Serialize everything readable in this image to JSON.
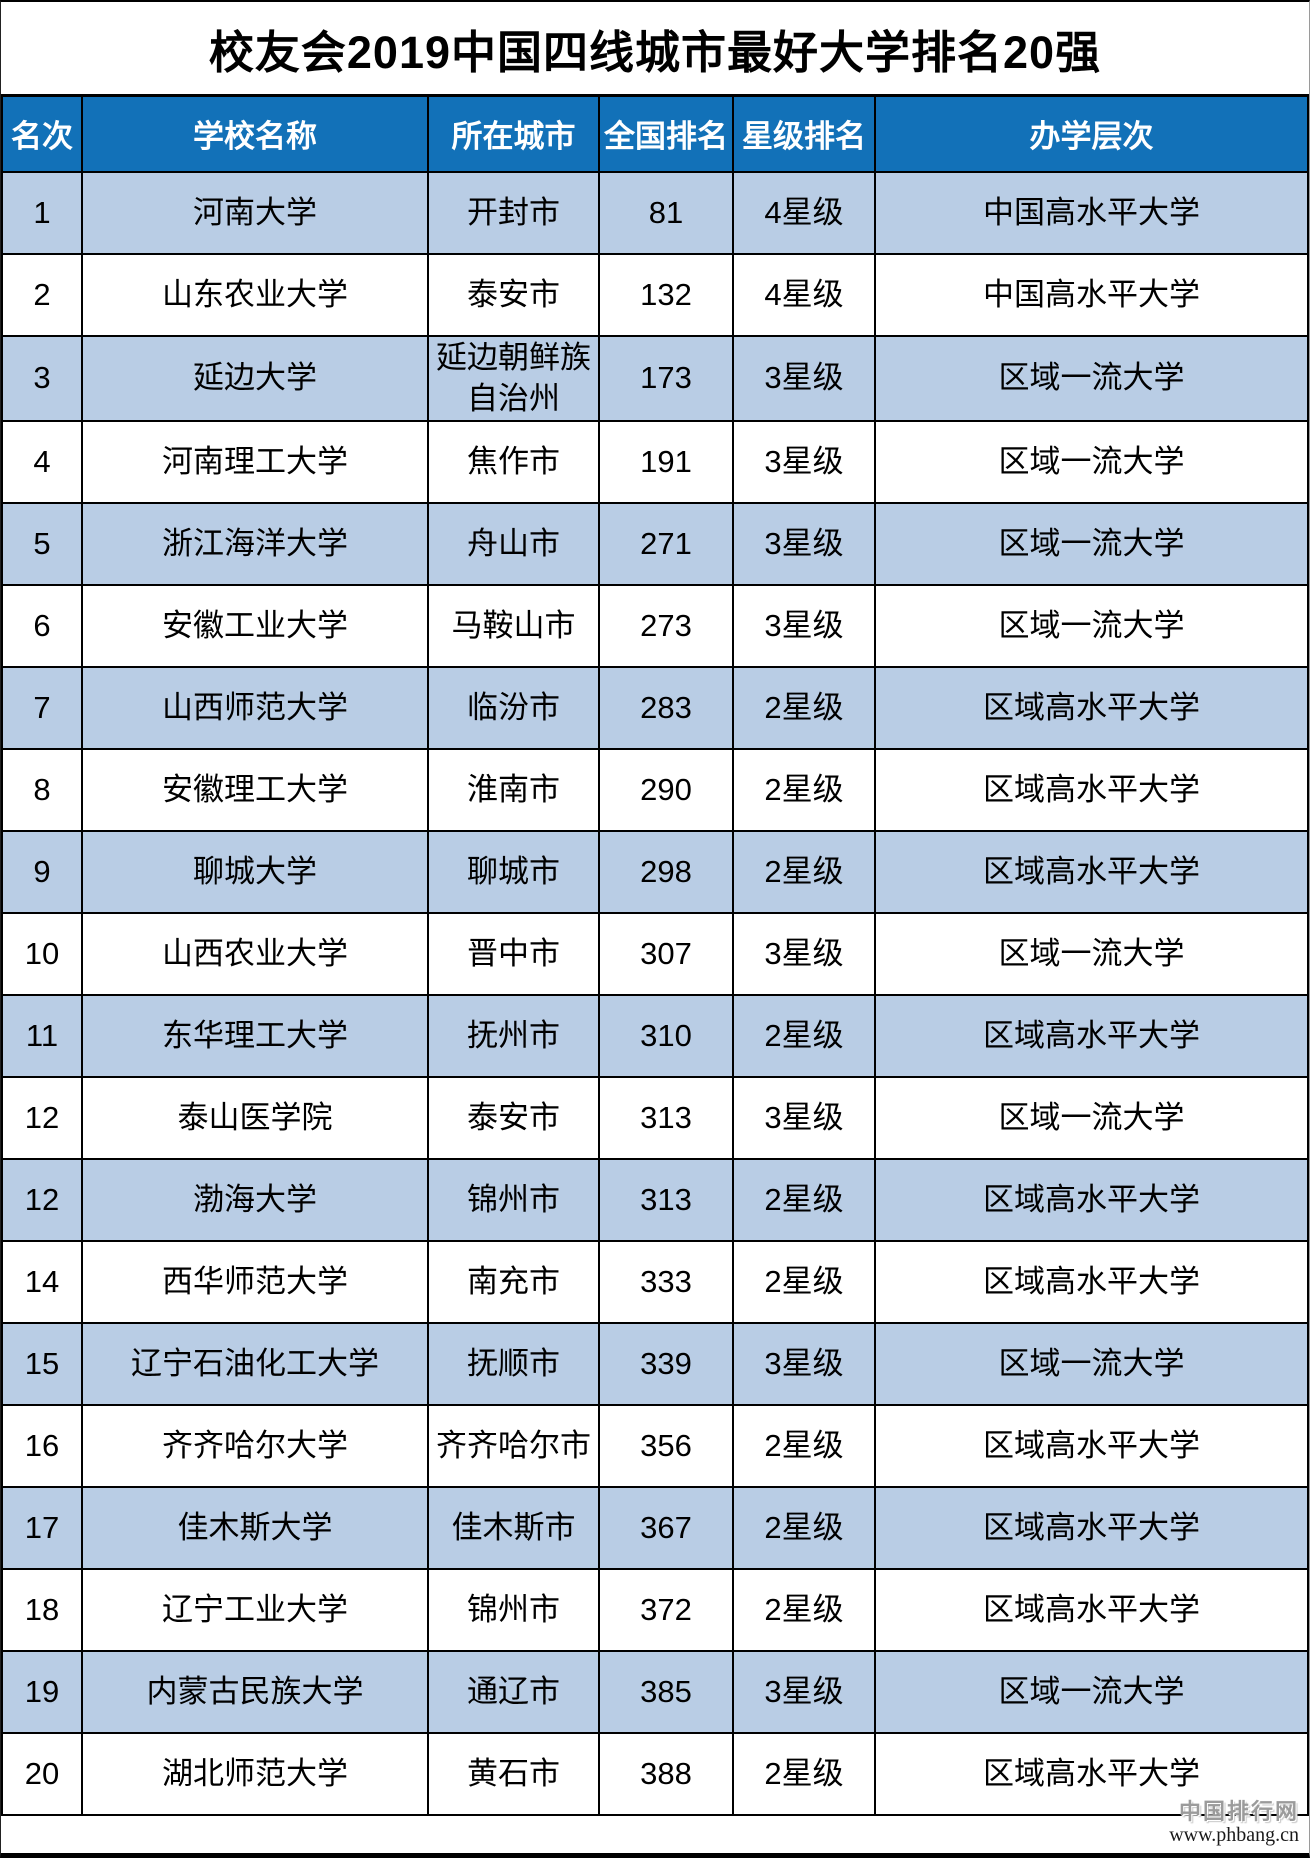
{
  "title": "校友会2019中国四线城市最好大学排名20强",
  "chart_data": {
    "type": "table",
    "title": "校友会2019中国四线城市最好大学排名20强",
    "columns": [
      "名次",
      "学校名称",
      "所在城市",
      "全国排名",
      "星级排名",
      "办学层次"
    ],
    "rows": [
      [
        "1",
        "河南大学",
        "开封市",
        "81",
        "4星级",
        "中国高水平大学"
      ],
      [
        "2",
        "山东农业大学",
        "泰安市",
        "132",
        "4星级",
        "中国高水平大学"
      ],
      [
        "3",
        "延边大学",
        "延边朝鲜族自治州",
        "173",
        "3星级",
        "区域一流大学"
      ],
      [
        "4",
        "河南理工大学",
        "焦作市",
        "191",
        "3星级",
        "区域一流大学"
      ],
      [
        "5",
        "浙江海洋大学",
        "舟山市",
        "271",
        "3星级",
        "区域一流大学"
      ],
      [
        "6",
        "安徽工业大学",
        "马鞍山市",
        "273",
        "3星级",
        "区域一流大学"
      ],
      [
        "7",
        "山西师范大学",
        "临汾市",
        "283",
        "2星级",
        "区域高水平大学"
      ],
      [
        "8",
        "安徽理工大学",
        "淮南市",
        "290",
        "2星级",
        "区域高水平大学"
      ],
      [
        "9",
        "聊城大学",
        "聊城市",
        "298",
        "2星级",
        "区域高水平大学"
      ],
      [
        "10",
        "山西农业大学",
        "晋中市",
        "307",
        "3星级",
        "区域一流大学"
      ],
      [
        "11",
        "东华理工大学",
        "抚州市",
        "310",
        "2星级",
        "区域高水平大学"
      ],
      [
        "12",
        "泰山医学院",
        "泰安市",
        "313",
        "3星级",
        "区域一流大学"
      ],
      [
        "12",
        "渤海大学",
        "锦州市",
        "313",
        "2星级",
        "区域高水平大学"
      ],
      [
        "14",
        "西华师范大学",
        "南充市",
        "333",
        "2星级",
        "区域高水平大学"
      ],
      [
        "15",
        "辽宁石油化工大学",
        "抚顺市",
        "339",
        "3星级",
        "区域一流大学"
      ],
      [
        "16",
        "齐齐哈尔大学",
        "齐齐哈尔市",
        "356",
        "2星级",
        "区域高水平大学"
      ],
      [
        "17",
        "佳木斯大学",
        "佳木斯市",
        "367",
        "2星级",
        "区域高水平大学"
      ],
      [
        "18",
        "辽宁工业大学",
        "锦州市",
        "372",
        "2星级",
        "区域高水平大学"
      ],
      [
        "19",
        "内蒙古民族大学",
        "通辽市",
        "385",
        "3星级",
        "区域一流大学"
      ],
      [
        "20",
        "湖北师范大学",
        "黄石市",
        "388",
        "2星级",
        "区域高水平大学"
      ]
    ],
    "legend_position": "none",
    "grid": true
  },
  "watermark": {
    "site_name": "中国排行网",
    "site_url": "www.phbang.cn"
  },
  "colors": {
    "header_bg": "#1271B8",
    "header_text": "#FFFFFF",
    "row_alt_bg": "#B9CDE5",
    "row_bg": "#FFFFFF",
    "border": "#000000"
  }
}
